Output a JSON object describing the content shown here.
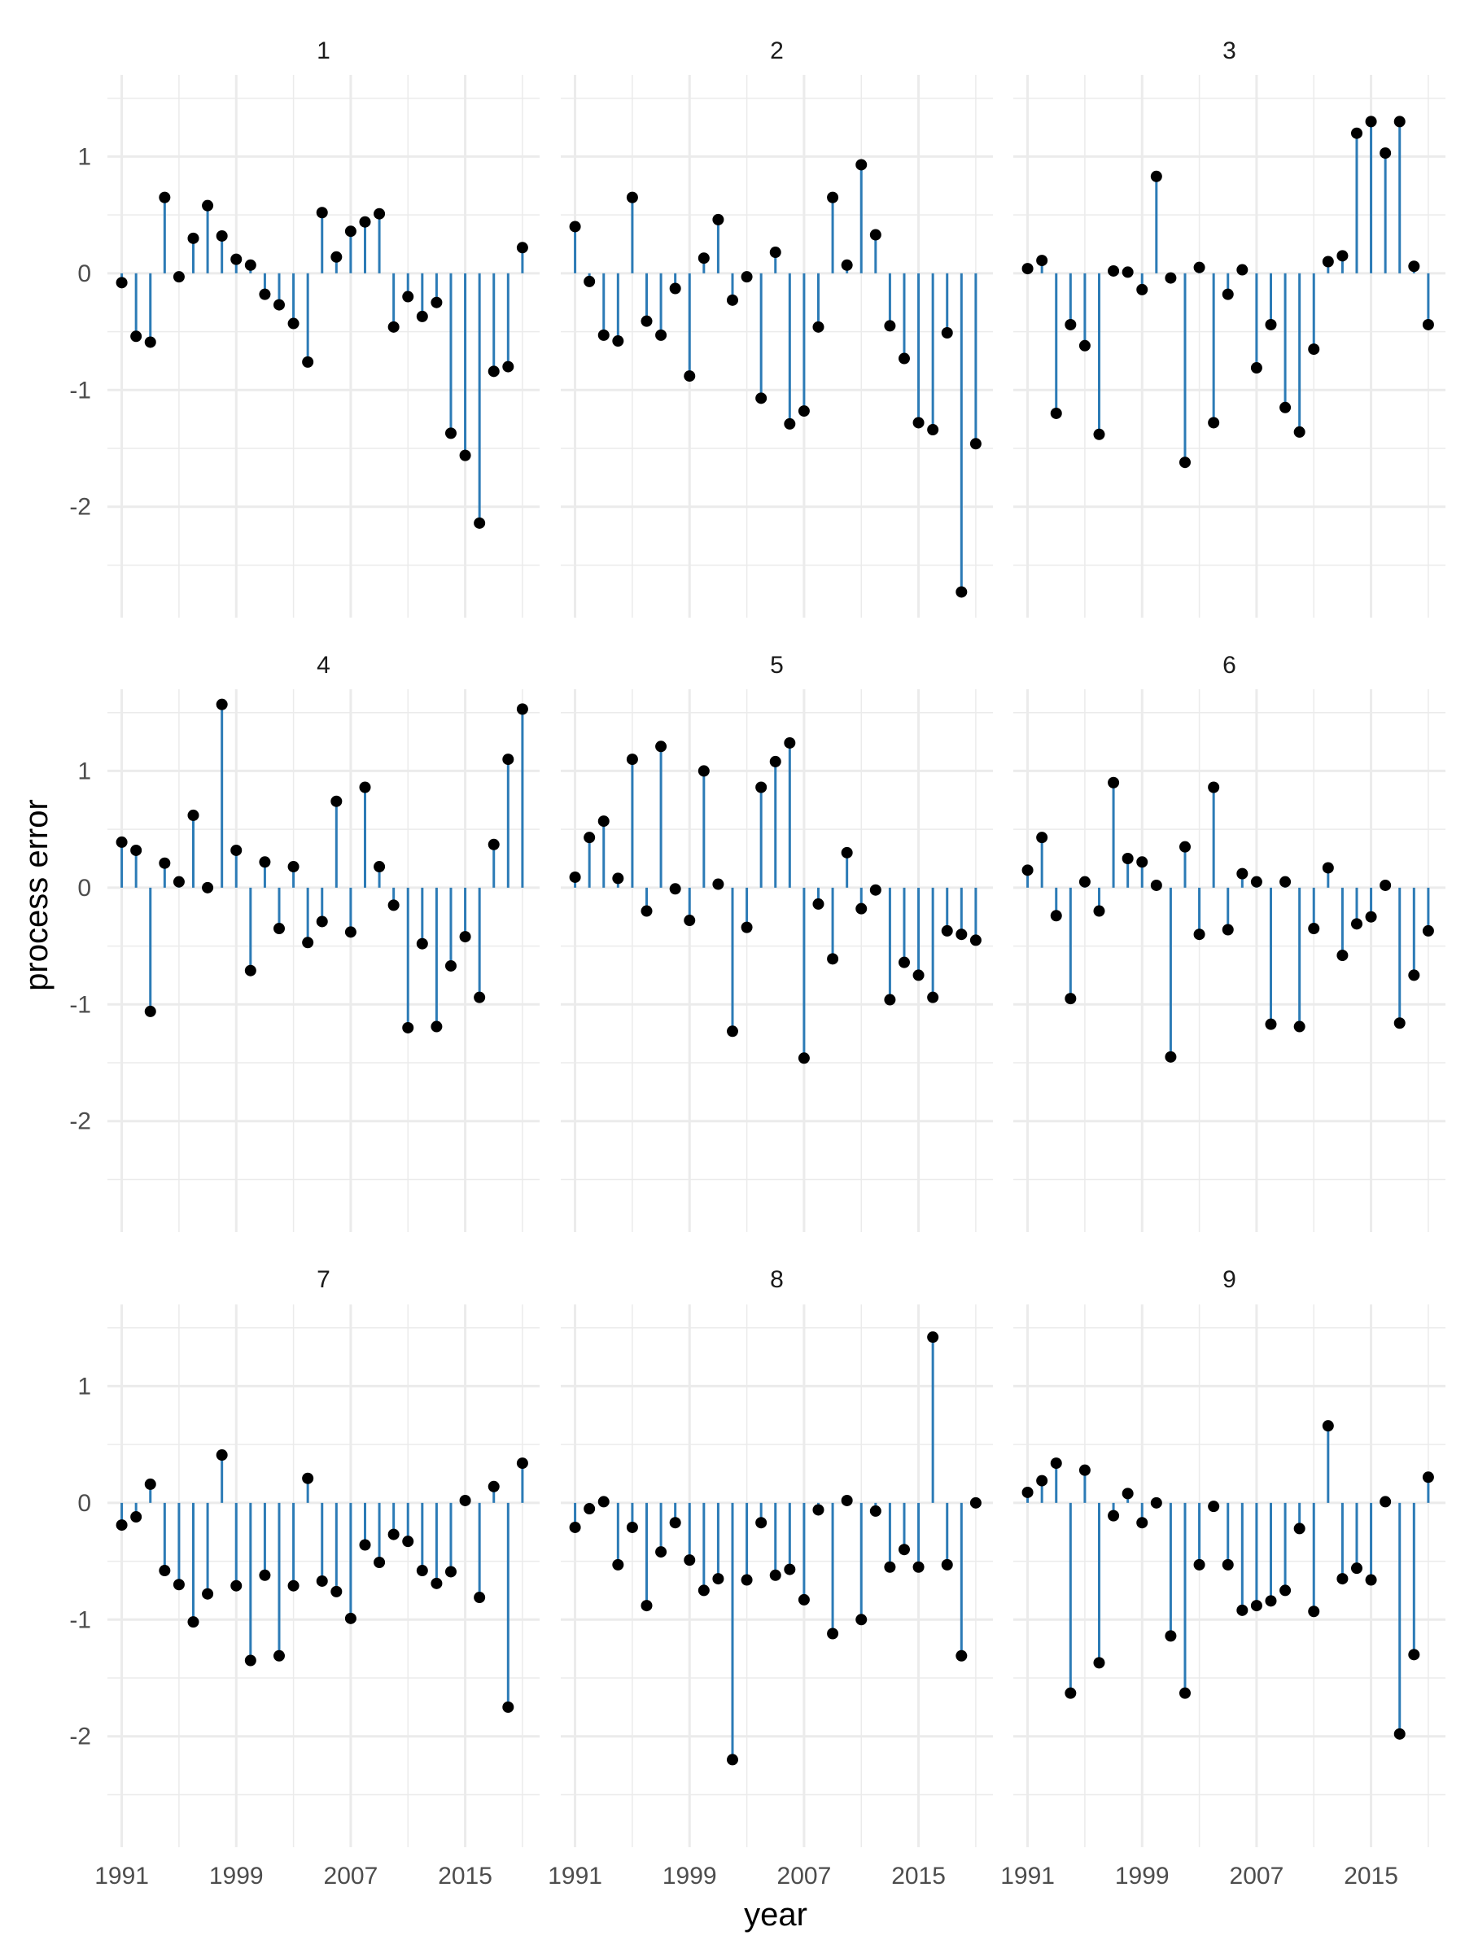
{
  "chart_data": {
    "type": "lollipop",
    "xlabel": "year",
    "ylabel": "process error",
    "x_ticks": [
      1991,
      1999,
      2007,
      2015
    ],
    "y_ticks": [
      1,
      0,
      -1,
      -2
    ],
    "xlim": [
      1990.0,
      2020.2
    ],
    "ylim": [
      -2.95,
      1.7
    ],
    "grid": true,
    "colors": {
      "stem": "#2c7bb6",
      "point": "#000000",
      "grid": "#ebebeb"
    },
    "years": [
      1991,
      1992,
      1993,
      1994,
      1995,
      1996,
      1997,
      1998,
      1999,
      2000,
      2001,
      2002,
      2003,
      2004,
      2005,
      2006,
      2007,
      2008,
      2009,
      2010,
      2011,
      2012,
      2013,
      2014,
      2015,
      2016,
      2017,
      2018,
      2019
    ],
    "panels": [
      {
        "label": "1",
        "values": [
          -0.08,
          -0.54,
          -0.59,
          0.65,
          -0.03,
          0.3,
          0.58,
          0.32,
          0.12,
          0.07,
          -0.18,
          -0.27,
          -0.43,
          -0.76,
          0.52,
          0.14,
          0.36,
          0.44,
          0.51,
          -0.46,
          -0.2,
          -0.37,
          -0.25,
          -1.37,
          -1.56,
          -2.14,
          -0.84,
          -0.8,
          0.22
        ]
      },
      {
        "label": "2",
        "values": [
          0.4,
          -0.07,
          -0.53,
          -0.58,
          0.65,
          -0.41,
          -0.53,
          -0.13,
          -0.88,
          0.13,
          0.46,
          -0.23,
          -0.03,
          -1.07,
          0.18,
          -1.29,
          -1.18,
          -0.46,
          0.65,
          0.07,
          0.93,
          0.33,
          -0.45,
          -0.73,
          -1.28,
          -1.34,
          -0.51,
          -2.73,
          -1.46
        ]
      },
      {
        "label": "3",
        "values": [
          0.04,
          0.11,
          -1.2,
          -0.44,
          -0.62,
          -1.38,
          0.02,
          0.01,
          -0.14,
          0.83,
          -0.04,
          -1.62,
          0.05,
          -1.28,
          -0.18,
          0.03,
          -0.81,
          -0.44,
          -1.15,
          -1.36,
          -0.65,
          0.1,
          0.15,
          1.2,
          1.3,
          1.03,
          1.3,
          0.06,
          -0.44
        ]
      },
      {
        "label": "4",
        "values": [
          0.39,
          0.32,
          -1.06,
          0.21,
          0.05,
          0.62,
          0.0,
          1.57,
          0.32,
          -0.71,
          0.22,
          -0.35,
          0.18,
          -0.47,
          -0.29,
          0.74,
          -0.38,
          0.86,
          0.18,
          -0.15,
          -1.2,
          -0.48,
          -1.19,
          -0.67,
          -0.42,
          -0.94,
          0.37,
          1.1,
          1.53
        ]
      },
      {
        "label": "5",
        "values": [
          0.09,
          0.43,
          0.57,
          0.08,
          1.1,
          -0.2,
          1.21,
          -0.01,
          -0.28,
          1.0,
          0.03,
          -1.23,
          -0.34,
          0.86,
          1.08,
          1.24,
          -1.46,
          -0.14,
          -0.61,
          0.3,
          -0.18,
          -0.02,
          -0.96,
          -0.64,
          -0.75,
          -0.94,
          -0.37,
          -0.4,
          -0.45
        ]
      },
      {
        "label": "6",
        "values": [
          0.15,
          0.43,
          -0.24,
          -0.95,
          0.05,
          -0.2,
          0.9,
          0.25,
          0.22,
          0.02,
          -1.45,
          0.35,
          -0.4,
          0.86,
          -0.36,
          0.12,
          0.05,
          -1.17,
          0.05,
          -1.19,
          -0.35,
          0.17,
          -0.58,
          -0.31,
          -0.25,
          0.02,
          -1.16,
          -0.75,
          -0.37
        ]
      },
      {
        "label": "7",
        "values": [
          -0.19,
          -0.12,
          0.16,
          -0.58,
          -0.7,
          -1.02,
          -0.78,
          0.41,
          -0.71,
          -1.35,
          -0.62,
          -1.31,
          -0.71,
          0.21,
          -0.67,
          -0.76,
          -0.99,
          -0.36,
          -0.51,
          -0.27,
          -0.33,
          -0.58,
          -0.69,
          -0.59,
          0.02,
          -0.81,
          0.14,
          -1.75,
          0.34
        ]
      },
      {
        "label": "8",
        "values": [
          -0.21,
          -0.05,
          0.01,
          -0.53,
          -0.21,
          -0.88,
          -0.42,
          -0.17,
          -0.49,
          -0.75,
          -0.65,
          -2.2,
          -0.66,
          -0.17,
          -0.62,
          -0.57,
          -0.83,
          -0.06,
          -1.12,
          0.02,
          -1.0,
          -0.07,
          -0.55,
          -0.4,
          -0.55,
          1.42,
          -0.53,
          -1.31,
          0.0
        ]
      },
      {
        "label": "9",
        "values": [
          0.09,
          0.19,
          0.34,
          -1.63,
          0.28,
          -1.37,
          -0.11,
          0.08,
          -0.17,
          0.0,
          -1.14,
          -1.63,
          -0.53,
          -0.03,
          -0.53,
          -0.92,
          -0.88,
          -0.84,
          -0.75,
          -0.22,
          -0.93,
          0.66,
          -0.65,
          -0.56,
          -0.66,
          0.01,
          -1.98,
          -1.3,
          0.22
        ]
      }
    ]
  }
}
